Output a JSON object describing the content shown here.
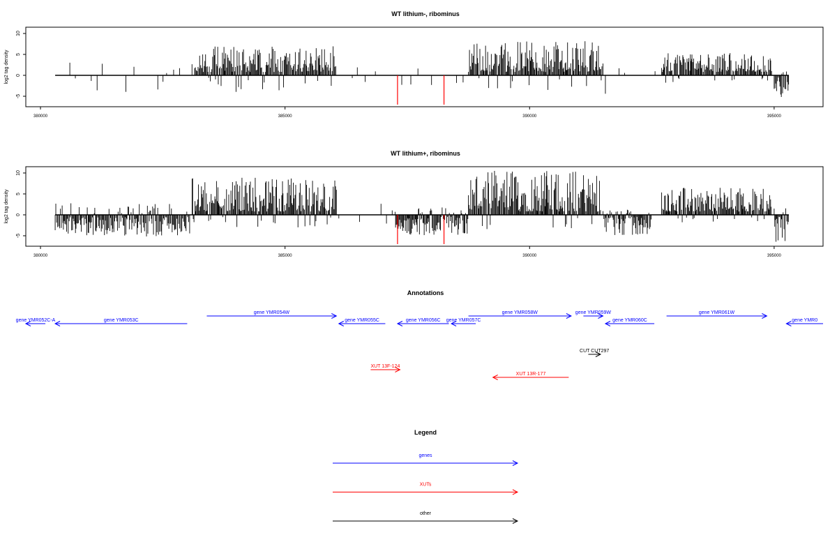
{
  "chart_data": [
    {
      "type": "bar",
      "title": "WT lithium-, ribominus",
      "ylabel": "log2 tag density",
      "xlabel": "",
      "xlim": [
        379700,
        396000
      ],
      "ylim": [
        -7.5,
        11.5
      ],
      "x_ticks": [
        380000,
        385000,
        390000,
        395000
      ],
      "x_tick_labels": [
        "380000",
        "385000",
        "390000",
        "395000"
      ],
      "y_ticks": [
        -5,
        0,
        5,
        10
      ],
      "y_tick_labels": [
        "-5",
        "0",
        "5",
        "10"
      ],
      "grid": false,
      "baseline": {
        "from": 380300,
        "to": 395300
      },
      "regions": [
        {
          "start": 380600,
          "end": 383100,
          "kind": "sparse",
          "max_pos": 3.0,
          "max_neg": 3.8
        },
        {
          "start": 383150,
          "end": 386050,
          "kind": "dense",
          "max_pos": 7.0,
          "max_neg": 3.5
        },
        {
          "start": 386100,
          "end": 388700,
          "kind": "sparse",
          "max_pos": 1.5,
          "max_neg": 2.5
        },
        {
          "start": 388750,
          "end": 391500,
          "kind": "dense",
          "max_pos": 8.2,
          "max_neg": 3.0
        },
        {
          "start": 391550,
          "end": 392600,
          "kind": "sparse",
          "max_pos": 1.5,
          "max_neg": 5.0
        },
        {
          "start": 392700,
          "end": 394950,
          "kind": "dense",
          "max_pos": 5.5,
          "max_neg": 1.5
        },
        {
          "start": 395000,
          "end": 395300,
          "kind": "neg_dense",
          "max_pos": 1.0,
          "max_neg": 5.5
        }
      ],
      "highlight_bars": [
        {
          "x": 387300,
          "value": -7.0,
          "color": "#ff0000"
        },
        {
          "x": 388250,
          "value": -7.0,
          "color": "#ff0000"
        }
      ]
    },
    {
      "type": "bar",
      "title": "WT lithium+, ribominus",
      "ylabel": "log2 tag density",
      "xlabel": "",
      "xlim": [
        379700,
        396000
      ],
      "ylim": [
        -7.5,
        11.5
      ],
      "x_ticks": [
        380000,
        385000,
        390000,
        395000
      ],
      "x_tick_labels": [
        "380000",
        "385000",
        "390000",
        "395000"
      ],
      "y_ticks": [
        -5,
        0,
        5,
        10
      ],
      "y_tick_labels": [
        "-5",
        "0",
        "5",
        "10"
      ],
      "grid": false,
      "baseline": {
        "from": 380300,
        "to": 395300
      },
      "regions": [
        {
          "start": 380300,
          "end": 383050,
          "kind": "neg_dense",
          "max_pos": 2.5,
          "max_neg": 5.2
        },
        {
          "start": 383100,
          "end": 386050,
          "kind": "dense",
          "max_pos": 9.0,
          "max_neg": 2.5
        },
        {
          "start": 386100,
          "end": 387250,
          "kind": "sparse",
          "max_pos": 2.5,
          "max_neg": 3.0
        },
        {
          "start": 387250,
          "end": 388750,
          "kind": "neg_dense",
          "max_pos": 1.5,
          "max_neg": 5.0
        },
        {
          "start": 388750,
          "end": 391450,
          "kind": "dense",
          "max_pos": 10.8,
          "max_neg": 3.0
        },
        {
          "start": 391500,
          "end": 392500,
          "kind": "neg_dense",
          "max_pos": 1.0,
          "max_neg": 5.0
        },
        {
          "start": 392700,
          "end": 394950,
          "kind": "dense",
          "max_pos": 6.5,
          "max_neg": 1.5
        },
        {
          "start": 395000,
          "end": 395300,
          "kind": "neg_dense",
          "max_pos": 1.5,
          "max_neg": 6.8
        }
      ],
      "highlight_bars": [
        {
          "x": 387300,
          "value": -7.0,
          "color": "#ff0000"
        },
        {
          "x": 388250,
          "value": -7.0,
          "color": "#ff0000"
        }
      ]
    }
  ],
  "annotations": {
    "title": "Annotations",
    "features": [
      {
        "label": "gene YMR052C-A",
        "start": 380100,
        "end": 379700,
        "strand": "-",
        "color": "#0000ff",
        "row": 1
      },
      {
        "label": "gene YMR053C",
        "start": 383000,
        "end": 380300,
        "strand": "-",
        "color": "#0000ff",
        "row": 1
      },
      {
        "label": "gene YMR054W",
        "start": 383400,
        "end": 386050,
        "strand": "+",
        "color": "#0000ff",
        "row": 0
      },
      {
        "label": "gene YMR055C",
        "start": 387050,
        "end": 386100,
        "strand": "-",
        "color": "#0000ff",
        "row": 1
      },
      {
        "label": "gene YMR056C",
        "start": 388350,
        "end": 387300,
        "strand": "-",
        "color": "#0000ff",
        "row": 1
      },
      {
        "label": "gene YMR057C",
        "start": 388900,
        "end": 388400,
        "strand": "-",
        "color": "#0000ff",
        "row": 1
      },
      {
        "label": "gene YMR058W",
        "start": 388750,
        "end": 390850,
        "strand": "+",
        "color": "#0000ff",
        "row": 0
      },
      {
        "label": "gene YMR059W",
        "start": 391100,
        "end": 391500,
        "strand": "+",
        "color": "#0000ff",
        "row": 0
      },
      {
        "label": "gene YMR060C",
        "start": 392550,
        "end": 391550,
        "strand": "-",
        "color": "#0000ff",
        "row": 1
      },
      {
        "label": "gene YMR061W",
        "start": 392800,
        "end": 394850,
        "strand": "+",
        "color": "#0000ff",
        "row": 0
      },
      {
        "label": "gene YMR0",
        "start": 396000,
        "end": 395250,
        "strand": "-",
        "color": "#0000ff",
        "row": 1
      },
      {
        "label": "CUT CUT297",
        "start": 391200,
        "end": 391450,
        "strand": "+",
        "color": "#000000",
        "row": 5
      },
      {
        "label": "XUT 13F-124",
        "start": 386750,
        "end": 387350,
        "strand": "+",
        "color": "#ff0000",
        "row": 7
      },
      {
        "label": "XUT 13R-177",
        "start": 390800,
        "end": 389250,
        "strand": "-",
        "color": "#ff0000",
        "row": 8
      }
    ]
  },
  "legend": {
    "title": "Legend",
    "items": [
      {
        "label": "genes",
        "color": "#0000ff"
      },
      {
        "label": "XUTs",
        "color": "#ff0000"
      },
      {
        "label": "other",
        "color": "#000000"
      }
    ]
  }
}
